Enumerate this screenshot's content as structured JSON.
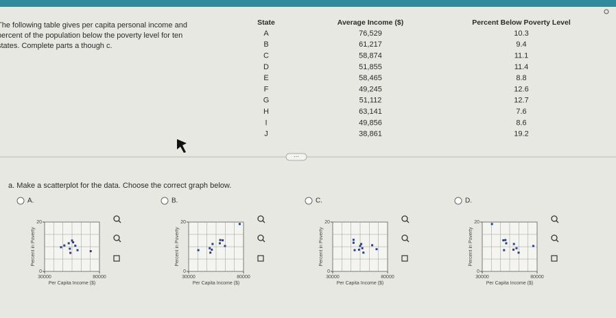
{
  "intro": [
    "The following table gives per capita personal income and",
    "percent of the population below the poverty level for ten",
    "states. Complete parts a though c."
  ],
  "table": {
    "headers": [
      "State",
      "Average Income ($)",
      "Percent Below Poverty Level"
    ],
    "rows": [
      [
        "A",
        "76,529",
        "10.3"
      ],
      [
        "B",
        "61,217",
        "9.4"
      ],
      [
        "C",
        "58,874",
        "11.1"
      ],
      [
        "D",
        "51,855",
        "11.4"
      ],
      [
        "E",
        "58,465",
        "8.8"
      ],
      [
        "F",
        "49,245",
        "12.6"
      ],
      [
        "G",
        "51,112",
        "12.7"
      ],
      [
        "H",
        "63,141",
        "7.6"
      ],
      [
        "I",
        "49,856",
        "8.6"
      ],
      [
        "J",
        "38,861",
        "19.2"
      ]
    ]
  },
  "question": "a. Make a scatterplot for the data. Choose the correct graph below.",
  "options": [
    {
      "label": "A.",
      "graph": {
        "xlabel": "Per Capita Income ($)",
        "ylabel": "Percent in Poverty",
        "xlim": [
          30000,
          80000
        ],
        "ylim": [
          0,
          20
        ],
        "xticks": [
          30000,
          80000
        ],
        "yticks": [
          0,
          20
        ],
        "points": [
          [
            48000,
            10.5
          ],
          [
            52000,
            11.4
          ],
          [
            55000,
            12.5
          ],
          [
            56000,
            11.8
          ],
          [
            58000,
            10.4
          ],
          [
            45000,
            9.8
          ],
          [
            53000,
            9.2
          ],
          [
            60000,
            8.6
          ],
          [
            53500,
            7.5
          ],
          [
            72000,
            8.2
          ]
        ]
      }
    },
    {
      "label": "B.",
      "graph": {
        "xlabel": "Per Capita Income ($)",
        "ylabel": "Percent in Poverty",
        "xlim": [
          30000,
          80000
        ],
        "ylim": [
          0,
          20
        ],
        "xticks": [
          30000,
          80000
        ],
        "yticks": [
          0,
          20
        ],
        "points": [
          [
            76500,
            19.2
          ],
          [
            61000,
            12.6
          ],
          [
            58800,
            12.7
          ],
          [
            51800,
            11.1
          ],
          [
            58400,
            11.4
          ],
          [
            49200,
            9.4
          ],
          [
            51100,
            8.8
          ],
          [
            63100,
            10.3
          ],
          [
            49800,
            7.6
          ],
          [
            38800,
            8.6
          ]
        ]
      }
    },
    {
      "label": "C.",
      "graph": {
        "xlabel": "Per Capita Income ($)",
        "ylabel": "Percent in Poverty",
        "xlim": [
          30000,
          80000
        ],
        "ylim": [
          0,
          20
        ],
        "xticks": [
          30000,
          80000
        ],
        "yticks": [
          0,
          20
        ],
        "points": [
          [
            49000,
            12.8
          ],
          [
            49000,
            11.6
          ],
          [
            55000,
            10.3
          ],
          [
            56000,
            11.1
          ],
          [
            57000,
            9.4
          ],
          [
            54000,
            8.8
          ],
          [
            58000,
            7.6
          ],
          [
            66000,
            10.6
          ],
          [
            50000,
            8.6
          ],
          [
            70000,
            9.0
          ]
        ]
      }
    },
    {
      "label": "D.",
      "graph": {
        "xlabel": "Per Capita Income ($)",
        "ylabel": "Percent in Poverty",
        "xlim": [
          30000,
          80000
        ],
        "ylim": [
          0,
          20
        ],
        "xticks": [
          30000,
          80000
        ],
        "yticks": [
          0,
          20
        ],
        "points": [
          [
            76529,
            10.3
          ],
          [
            61217,
            9.4
          ],
          [
            58874,
            11.1
          ],
          [
            51855,
            11.4
          ],
          [
            58465,
            8.8
          ],
          [
            49245,
            12.6
          ],
          [
            51112,
            12.7
          ],
          [
            63141,
            7.6
          ],
          [
            49856,
            8.6
          ],
          [
            38861,
            19.2
          ]
        ]
      }
    }
  ]
}
